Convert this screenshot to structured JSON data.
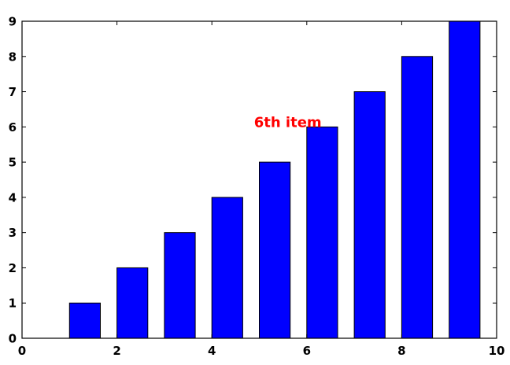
{
  "chart_data": {
    "type": "bar",
    "x": [
      1,
      2,
      3,
      4,
      5,
      6,
      7,
      8,
      9
    ],
    "values": [
      1,
      2,
      3,
      4,
      5,
      6,
      7,
      8,
      9
    ],
    "bar_width": 0.65,
    "bar_color": "#0000ff",
    "edge_color": "#000000",
    "xlim": [
      0,
      10
    ],
    "ylim": [
      0,
      9
    ],
    "xticks": [
      "0",
      "2",
      "4",
      "6",
      "8",
      "10"
    ],
    "yticks": [
      "0",
      "1",
      "2",
      "3",
      "4",
      "5",
      "6",
      "7",
      "8",
      "9"
    ],
    "grid": false,
    "annotation": {
      "text": "6th item",
      "x": 5.6,
      "y": 6,
      "color": "#ff0000"
    }
  }
}
